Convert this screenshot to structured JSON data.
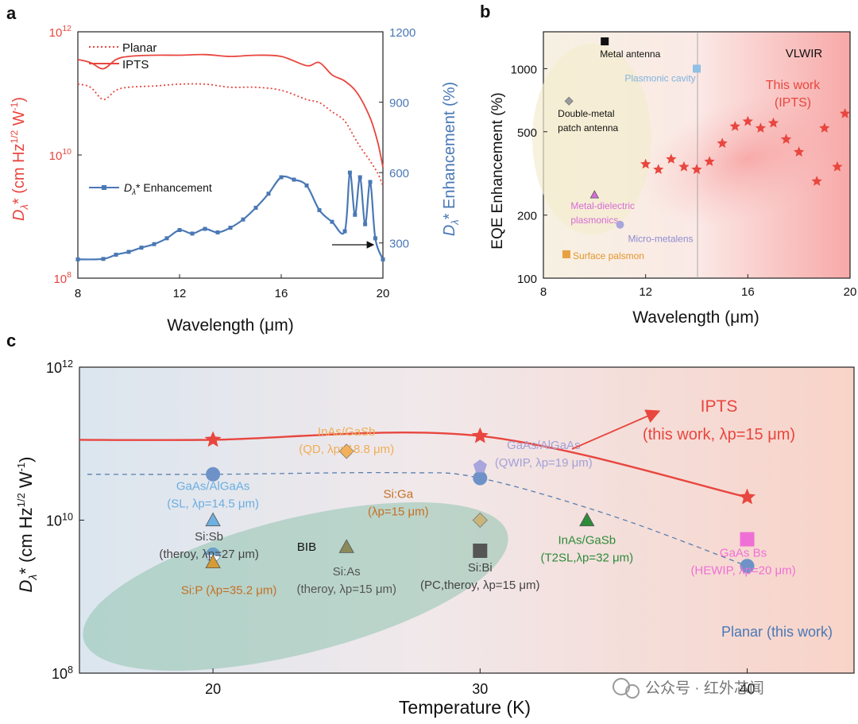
{
  "colors": {
    "red": "#e8463f",
    "blue": "#4a78b5",
    "green": "#2f8a57",
    "orange": "#c9702b"
  },
  "panel_labels": {
    "a": "a",
    "b": "b",
    "c": "c"
  },
  "watermark": "公众号 · 红外芯闻",
  "chart_data": [
    {
      "id": "a",
      "type": "line",
      "title": "",
      "xlabel": "Wavelength (μm)",
      "ylabel_left_base": "D",
      "ylabel_left_sub": "λ",
      "ylabel_left_rest": "* (cm Hz",
      "ylabel_left_sup": "1/2",
      "ylabel_left_end": " W",
      "ylabel_left_sup2": "-1",
      "ylabel_left_close": ")",
      "ylabel_right_base": "D",
      "ylabel_right_sub": "λ",
      "ylabel_right_rest": "* Enhancement (%)",
      "xlim": [
        8,
        20
      ],
      "xticks": [
        "8",
        "12",
        "16",
        "20"
      ],
      "ylim_left_log": [
        8,
        12
      ],
      "yticks_left": [
        {
          "mant": "10",
          "exp": "8",
          "v": 8
        },
        {
          "mant": "10",
          "exp": "10",
          "v": 10
        },
        {
          "mant": "10",
          "exp": "12",
          "v": 12
        }
      ],
      "ylim_right": [
        150,
        1200
      ],
      "yticks_right": [
        "300",
        "600",
        "900",
        "1200"
      ],
      "legend": [
        "Planar",
        "IPTS"
      ],
      "legend2": {
        "base": "D",
        "sub": "λ",
        "rest": "* Enhancement"
      },
      "series": [
        {
          "name": "IPTS",
          "axis": "left",
          "style": "solid",
          "x": [
            8,
            8.5,
            9,
            9.5,
            10,
            11,
            12,
            13,
            14,
            15,
            16,
            17,
            17.5,
            18,
            18.5,
            19,
            19.5,
            19.8,
            20
          ],
          "y": [
            11.55,
            11.5,
            11.4,
            11.55,
            11.6,
            11.62,
            11.62,
            11.63,
            11.6,
            11.62,
            11.6,
            11.45,
            11.5,
            11.3,
            11.2,
            11.0,
            10.6,
            10.2,
            9.8
          ]
        },
        {
          "name": "Planar",
          "axis": "left",
          "style": "dotted",
          "x": [
            8,
            8.5,
            9,
            9.5,
            10,
            11,
            12,
            13,
            14,
            15,
            16,
            17,
            17.5,
            18,
            18.5,
            19,
            19.5,
            19.8,
            20
          ],
          "y": [
            11.15,
            11.1,
            10.9,
            11.05,
            11.1,
            11.12,
            11.15,
            11.15,
            11.1,
            11.1,
            11.05,
            10.9,
            10.85,
            10.7,
            10.55,
            10.2,
            9.9,
            9.7,
            9.5
          ]
        },
        {
          "name": "Dλ* Enhancement",
          "axis": "right",
          "style": "markers",
          "x": [
            8,
            9,
            9.5,
            10,
            10.5,
            11,
            11.5,
            12,
            12.5,
            13,
            13.5,
            14,
            14.5,
            15,
            15.5,
            16,
            16.5,
            17,
            17.5,
            18,
            18.5,
            18.7,
            18.9,
            19.1,
            19.3,
            19.5,
            19.7,
            20
          ],
          "y": [
            230,
            232,
            250,
            262,
            280,
            295,
            320,
            355,
            340,
            360,
            345,
            365,
            400,
            450,
            510,
            580,
            570,
            545,
            440,
            390,
            350,
            600,
            420,
            580,
            380,
            560,
            320,
            230
          ]
        }
      ]
    },
    {
      "id": "b",
      "type": "scatter",
      "xlabel": "Wavelength (μm)",
      "ylabel": "EQE Enhancement (%)",
      "xlim": [
        8,
        20
      ],
      "xticks": [
        "8",
        "12",
        "16",
        "20"
      ],
      "ylim_log": [
        100,
        1500
      ],
      "yticks": [
        100,
        200,
        500,
        1000
      ],
      "ytick_labels": [
        "100",
        "200",
        "500",
        "1000"
      ],
      "region_label": "VLWIR",
      "this_work": [
        "This work",
        "(IPTS)"
      ],
      "points": [
        {
          "label": "Metal antenna",
          "x": 10.4,
          "y": 1350,
          "color": "#111111",
          "marker": "square"
        },
        {
          "label": "Plasmonic cavity",
          "x": 14,
          "y": 1000,
          "color": "#8fc0e6",
          "marker": "square"
        },
        {
          "label": "Double-metal patch antenna",
          "x": 9,
          "y": 700,
          "color": "#9b9b9b",
          "marker": "diamond"
        },
        {
          "label": "Metal-dielectric plasmonics",
          "x": 10,
          "y": 250,
          "color": "#d86bd8",
          "marker": "tri"
        },
        {
          "label": "Micro-metalens",
          "x": 11,
          "y": 180,
          "color": "#a9a6dd",
          "marker": "circle"
        },
        {
          "label": "Surface palsmon",
          "x": 8.9,
          "y": 130,
          "color": "#e8a040",
          "marker": "square"
        }
      ],
      "ipts_x": [
        12,
        12.5,
        13,
        13.5,
        14,
        14.5,
        15,
        15.5,
        16,
        16.5,
        17,
        17.5,
        18,
        18.7,
        19,
        19.5,
        19.8
      ],
      "ipts_y": [
        350,
        330,
        370,
        340,
        330,
        360,
        440,
        530,
        560,
        520,
        550,
        460,
        400,
        290,
        520,
        340,
        610
      ]
    },
    {
      "id": "c",
      "type": "line",
      "xlabel": "Temperature (K)",
      "ylabel_base": "D",
      "ylabel_sub": "λ",
      "ylabel_rest": "* (cm Hz",
      "ylabel_sup": "1/2",
      "ylabel_end": " W",
      "ylabel_sup2": "-1",
      "ylabel_close": ")",
      "xlim": [
        15,
        44
      ],
      "xticks": [
        "20",
        "30",
        "40"
      ],
      "ylim_log": [
        8,
        12
      ],
      "yticks": [
        {
          "mant": "10",
          "exp": "8",
          "v": 8
        },
        {
          "mant": "10",
          "exp": "10",
          "v": 10
        },
        {
          "mant": "10",
          "exp": "12",
          "v": 12
        }
      ],
      "ipts": {
        "name": "IPTS",
        "x": [
          20,
          30,
          40
        ],
        "y": [
          11.05,
          11.1,
          10.3
        ],
        "label1": "IPTS",
        "label2": "(this work, λp=15 μm)"
      },
      "planar": {
        "name": "Planar (this work)",
        "x": [
          20,
          30,
          40
        ],
        "y": [
          10.6,
          10.55,
          9.4
        ]
      },
      "region": "BIB",
      "refs": [
        {
          "l1": "InAs/GaSb",
          "l2": "(QD, λp=18.8 μm)",
          "x": 25,
          "y": 10.9,
          "color": "#f2b15b",
          "marker": "diamond"
        },
        {
          "l1": "GaAs/AlGaAs",
          "l2": "(QWIP, λp=19 μm)",
          "x": 30,
          "y": 10.7,
          "color": "#a9a6dd",
          "marker": "pentagon"
        },
        {
          "l1": "GaAs/AlGaAs",
          "l2": "(SL, λp=14.5 μm)",
          "x": 20,
          "y": 10.0,
          "color": "#6fb0e0",
          "marker": "tri"
        },
        {
          "l1": "Si:Sb",
          "l2": "(theroy, λp=27 μm)",
          "x": 20,
          "y": 9.55,
          "color": "#6aa0c7",
          "marker": "halfcircle"
        },
        {
          "l1": "Si:As",
          "l2": "(theroy, λp=15 μm)",
          "x": 25,
          "y": 9.65,
          "color": "#8a8a5a",
          "marker": "tri"
        },
        {
          "l1": "Si:Ga",
          "l2": "(λp=15 μm)",
          "x": 30,
          "y": 10.0,
          "color": "#c9b57a",
          "marker": "diamond"
        },
        {
          "l1": "Si:P (λp=35.2 μm)",
          "l2": "",
          "x": 20,
          "y": 9.45,
          "color": "#d59c35",
          "marker": "tri"
        },
        {
          "l1": "Si:Bi",
          "l2": "(PC,theroy, λp=15 μm)",
          "x": 30,
          "y": 9.6,
          "color": "#555555",
          "marker": "square"
        },
        {
          "l1": "InAs/GaSb",
          "l2": "(T2SL,λp=32 μm)",
          "x": 34,
          "y": 10.0,
          "color": "#2e8b3a",
          "marker": "tri"
        },
        {
          "l1": "GaAs Bs",
          "l2": "(HEWIP, λp=20 μm)",
          "x": 40,
          "y": 9.75,
          "color": "#f06fd6",
          "marker": "square"
        }
      ]
    }
  ]
}
